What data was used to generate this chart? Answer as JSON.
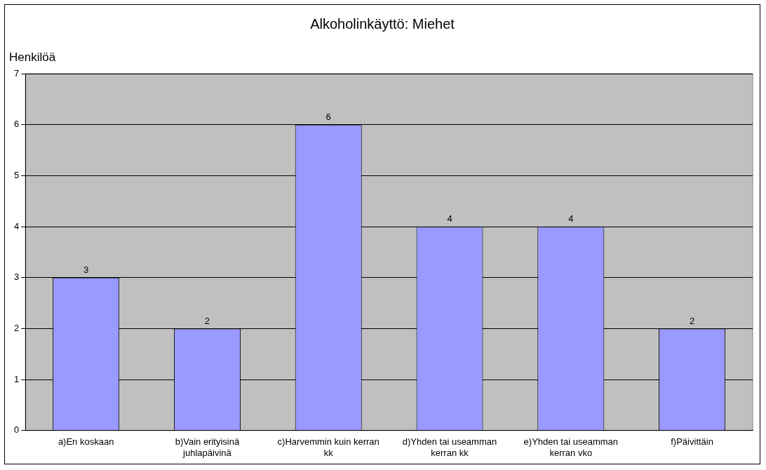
{
  "chart_data": {
    "type": "bar",
    "title": "Alkoholinkäyttö: Miehet",
    "ylabel": "Henkilöä",
    "categories": [
      "a)En koskaan",
      "b)Vain erityisinä juhlapäivinä",
      "c)Harvemmin kuin kerran kk",
      "d)Yhden tai useamman kerran kk",
      "e)Yhden tai useamman kerran vko",
      "f)Päivittäin"
    ],
    "values": [
      3,
      2,
      6,
      4,
      4,
      2
    ],
    "color": "#9999ff",
    "ylim": [
      0,
      7
    ],
    "yticks": [
      0,
      1,
      2,
      3,
      4,
      5,
      6,
      7
    ],
    "grid": "y",
    "data_labels": true,
    "legend": false
  }
}
